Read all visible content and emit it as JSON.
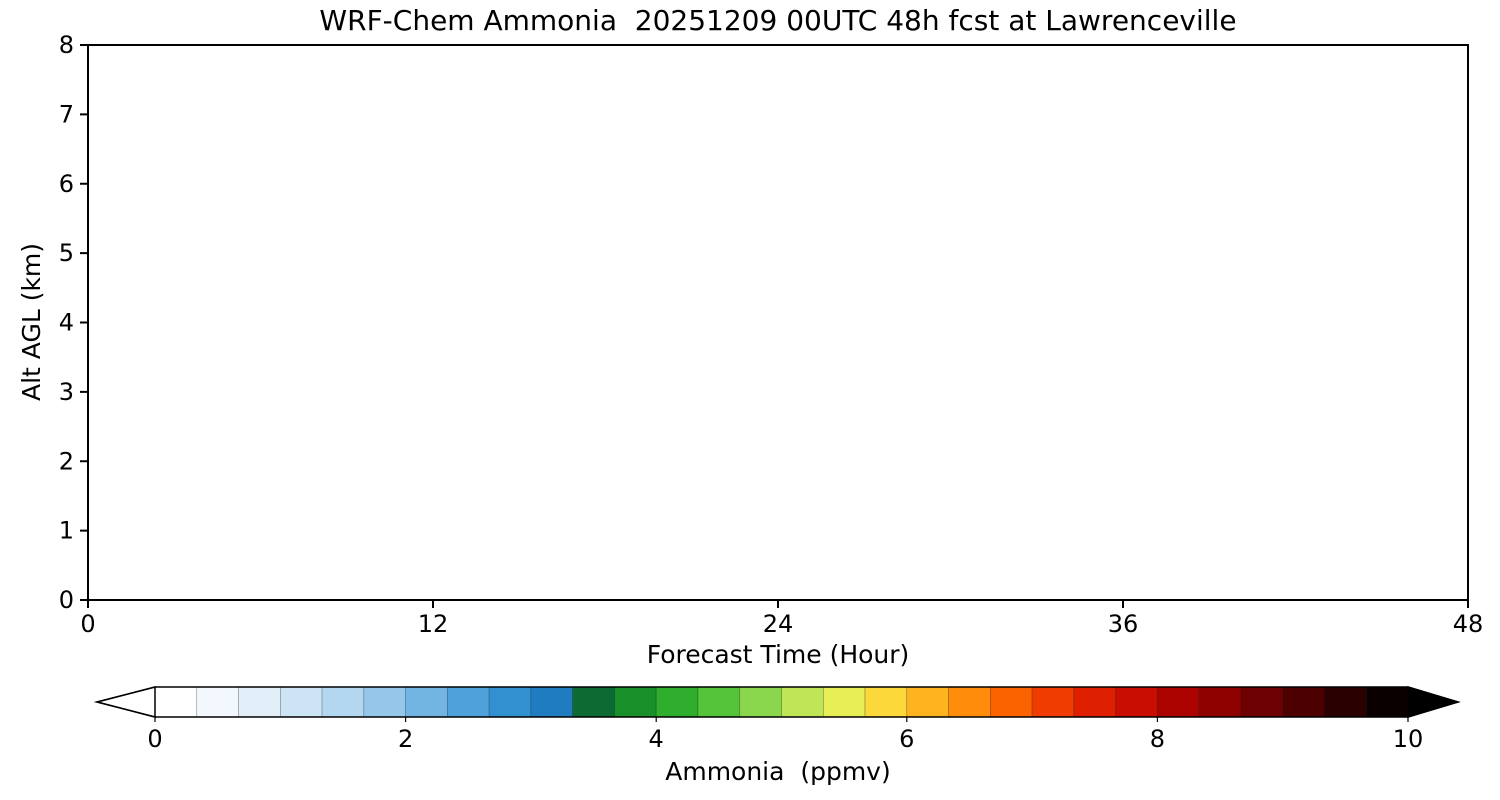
{
  "chart_data": {
    "type": "heatmap",
    "title": "WRF-Chem Ammonia  20251209 00UTC 48h fcst at Lawrenceville",
    "xlabel": "Forecast Time (Hour)",
    "ylabel": "Alt AGL (km)",
    "xlim": [
      0,
      48
    ],
    "ylim": [
      0,
      8
    ],
    "xticks": [
      0,
      12,
      24,
      36,
      48
    ],
    "yticks": [
      0,
      1,
      2,
      3,
      4,
      5,
      6,
      7,
      8
    ],
    "grid": true,
    "grid_color": "#d9d9d9",
    "field": {
      "uniform_value": 0,
      "rendered_as": "blank white plot area (ammonia ~0 ppmv everywhere)"
    },
    "colorbar": {
      "label": "Ammonia  (ppmv)",
      "min": 0,
      "max": 10,
      "ticks": [
        0,
        2,
        4,
        6,
        8,
        10
      ],
      "under_arrow_color": "#ffffff",
      "over_arrow_color": "#000000",
      "segment_colors": [
        "#ffffff",
        "#f2f8fd",
        "#e2eff9",
        "#cde4f5",
        "#b3d7f0",
        "#94c7ea",
        "#72b5e3",
        "#4fa1da",
        "#3090d0",
        "#1f7cc0",
        "#0c6b32",
        "#188f28",
        "#2fae2e",
        "#55c43a",
        "#8ad64d",
        "#bfe657",
        "#e8ee55",
        "#fdd83a",
        "#ffb31e",
        "#ff8c0a",
        "#fb6200",
        "#f03c00",
        "#de2000",
        "#c90d00",
        "#ad0300",
        "#8e0000",
        "#6d0000",
        "#4c0000",
        "#2b0000",
        "#0a0000"
      ]
    }
  }
}
